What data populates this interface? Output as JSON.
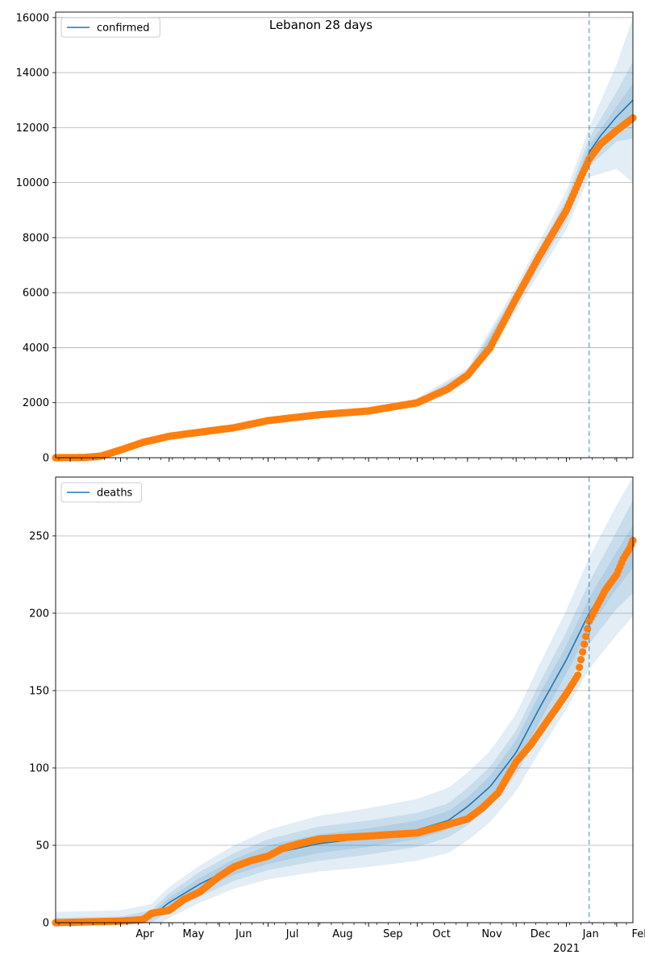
{
  "chart_data": [
    {
      "type": "line",
      "title": "Lebanon 28 days",
      "ylim": [
        0,
        16200
      ],
      "yticks": [
        0,
        2000,
        4000,
        6000,
        8000,
        10000,
        12000,
        14000,
        16000
      ],
      "grid": true,
      "legend": {
        "placement": "top-left",
        "entries": [
          {
            "label": "confirmed",
            "color": "#1f77b4"
          }
        ]
      },
      "forecast_start": "2021-01-15",
      "x_start": "2020-02-21",
      "x_end": "2021-02-11",
      "series": [
        {
          "name": "confirmed",
          "kind": "model",
          "color": "#1f77b4",
          "x": [
            "2020-02-21",
            "2020-03-10",
            "2020-03-20",
            "2020-04-01",
            "2020-04-15",
            "2020-05-01",
            "2020-05-20",
            "2020-06-10",
            "2020-07-01",
            "2020-08-01",
            "2020-09-01",
            "2020-10-01",
            "2020-10-20",
            "2020-11-01",
            "2020-11-15",
            "2020-12-01",
            "2020-12-15",
            "2021-01-01",
            "2021-01-10",
            "2021-01-15",
            "2021-01-22",
            "2021-02-01",
            "2021-02-11"
          ],
          "y": [
            0,
            10,
            60,
            280,
            560,
            780,
            930,
            1090,
            1350,
            1560,
            1700,
            2000,
            2500,
            3000,
            4000,
            5800,
            7300,
            9000,
            10200,
            11100,
            11700,
            12400,
            13000
          ]
        },
        {
          "name": "confirmed",
          "kind": "observed",
          "color": "#ff7f0e",
          "x": [
            "2020-02-21",
            "2020-03-10",
            "2020-03-20",
            "2020-04-01",
            "2020-04-15",
            "2020-05-01",
            "2020-05-20",
            "2020-06-10",
            "2020-07-01",
            "2020-08-01",
            "2020-09-01",
            "2020-10-01",
            "2020-10-20",
            "2020-11-01",
            "2020-11-15",
            "2020-12-01",
            "2020-12-15",
            "2021-01-01",
            "2021-01-10",
            "2021-01-15",
            "2021-01-22",
            "2021-02-01",
            "2021-02-11"
          ],
          "y": [
            0,
            10,
            60,
            280,
            560,
            780,
            930,
            1090,
            1350,
            1560,
            1700,
            2000,
            2500,
            3000,
            4000,
            5800,
            7300,
            9000,
            10200,
            10850,
            11400,
            11900,
            12350
          ]
        }
      ],
      "bands": {
        "x": [
          "2020-10-01",
          "2020-11-01",
          "2020-12-01",
          "2021-01-01",
          "2021-01-15",
          "2021-02-01",
          "2021-02-11"
        ],
        "center": [
          2000,
          3000,
          5800,
          9000,
          11100,
          12400,
          13000
        ],
        "half_widths": [
          [
            50,
            80,
            140,
            200,
            260,
            380,
            600
          ],
          [
            100,
            160,
            280,
            400,
            520,
            900,
            1400
          ],
          [
            170,
            260,
            450,
            700,
            900,
            1900,
            3000
          ]
        ]
      }
    },
    {
      "type": "line",
      "title": "",
      "ylim": [
        0,
        288
      ],
      "yticks": [
        0,
        50,
        100,
        150,
        200,
        250
      ],
      "grid": true,
      "legend": {
        "placement": "top-left",
        "entries": [
          {
            "label": "deaths",
            "color": "#1f77b4"
          }
        ]
      },
      "forecast_start": "2021-01-15",
      "x_start": "2020-02-21",
      "x_end": "2021-02-11",
      "xlabels": [
        "Apr",
        "May",
        "Jun",
        "Jul",
        "Aug",
        "Sep",
        "Oct",
        "Nov",
        "Dec",
        "Jan",
        "Feb"
      ],
      "xlabel_dates": [
        "2020-04-01",
        "2020-05-01",
        "2020-06-01",
        "2020-07-01",
        "2020-08-01",
        "2020-09-01",
        "2020-10-01",
        "2020-11-01",
        "2020-12-01",
        "2021-01-01",
        "2021-02-01"
      ],
      "year_label": "2021",
      "series": [
        {
          "name": "deaths",
          "kind": "model",
          "color": "#1f77b4",
          "x": [
            "2020-02-21",
            "2020-04-01",
            "2020-04-20",
            "2020-05-01",
            "2020-05-20",
            "2020-06-10",
            "2020-07-01",
            "2020-08-01",
            "2020-09-01",
            "2020-10-01",
            "2020-10-20",
            "2020-11-01",
            "2020-11-15",
            "2020-12-01",
            "2020-12-15",
            "2021-01-01",
            "2021-01-15",
            "2021-02-01",
            "2021-02-11"
          ],
          "y": [
            0,
            1,
            4,
            13,
            25,
            36,
            44,
            51,
            55,
            60,
            66,
            75,
            88,
            110,
            138,
            170,
            200,
            228,
            243
          ]
        },
        {
          "name": "deaths",
          "kind": "observed",
          "color": "#ff7f0e",
          "x": [
            "2020-02-21",
            "2020-04-01",
            "2020-04-15",
            "2020-04-20",
            "2020-05-01",
            "2020-05-10",
            "2020-05-20",
            "2020-06-01",
            "2020-06-10",
            "2020-06-20",
            "2020-07-01",
            "2020-07-10",
            "2020-07-20",
            "2020-08-01",
            "2020-08-15",
            "2020-09-01",
            "2020-09-15",
            "2020-10-01",
            "2020-10-15",
            "2020-11-01",
            "2020-11-10",
            "2020-11-20",
            "2020-12-01",
            "2020-12-10",
            "2020-12-20",
            "2021-01-01",
            "2021-01-08",
            "2021-01-12",
            "2021-01-15",
            "2021-01-20",
            "2021-01-25",
            "2021-02-01",
            "2021-02-05",
            "2021-02-09",
            "2021-02-11"
          ],
          "y": [
            0,
            1,
            2,
            6,
            8,
            15,
            20,
            30,
            36,
            40,
            43,
            48,
            51,
            54,
            55,
            56,
            57,
            58,
            62,
            67,
            74,
            84,
            104,
            115,
            130,
            148,
            160,
            180,
            195,
            205,
            215,
            225,
            235,
            242,
            247
          ]
        }
      ],
      "bands": {
        "x": [
          "2020-02-21",
          "2020-04-01",
          "2020-04-20",
          "2020-05-01",
          "2020-05-20",
          "2020-06-10",
          "2020-07-01",
          "2020-08-01",
          "2020-09-01",
          "2020-10-01",
          "2020-10-20",
          "2020-11-01",
          "2020-11-15",
          "2020-12-01",
          "2020-12-15",
          "2021-01-01",
          "2021-01-15",
          "2021-02-01",
          "2021-02-11"
        ],
        "center": [
          0,
          1,
          4,
          13,
          25,
          36,
          44,
          51,
          55,
          60,
          66,
          75,
          88,
          110,
          138,
          170,
          200,
          228,
          243
        ],
        "half_widths": [
          [
            1,
            1,
            2,
            3,
            4,
            5,
            6,
            6,
            6,
            6,
            6,
            6,
            7,
            8,
            9,
            9,
            10,
            12,
            14
          ],
          [
            3,
            3,
            4,
            6,
            8,
            9,
            10,
            11,
            11,
            11,
            11,
            12,
            13,
            14,
            16,
            18,
            20,
            25,
            30
          ],
          [
            7,
            7,
            8,
            10,
            12,
            14,
            16,
            18,
            19,
            20,
            21,
            22,
            23,
            25,
            28,
            32,
            36,
            42,
            45
          ]
        ]
      }
    }
  ]
}
